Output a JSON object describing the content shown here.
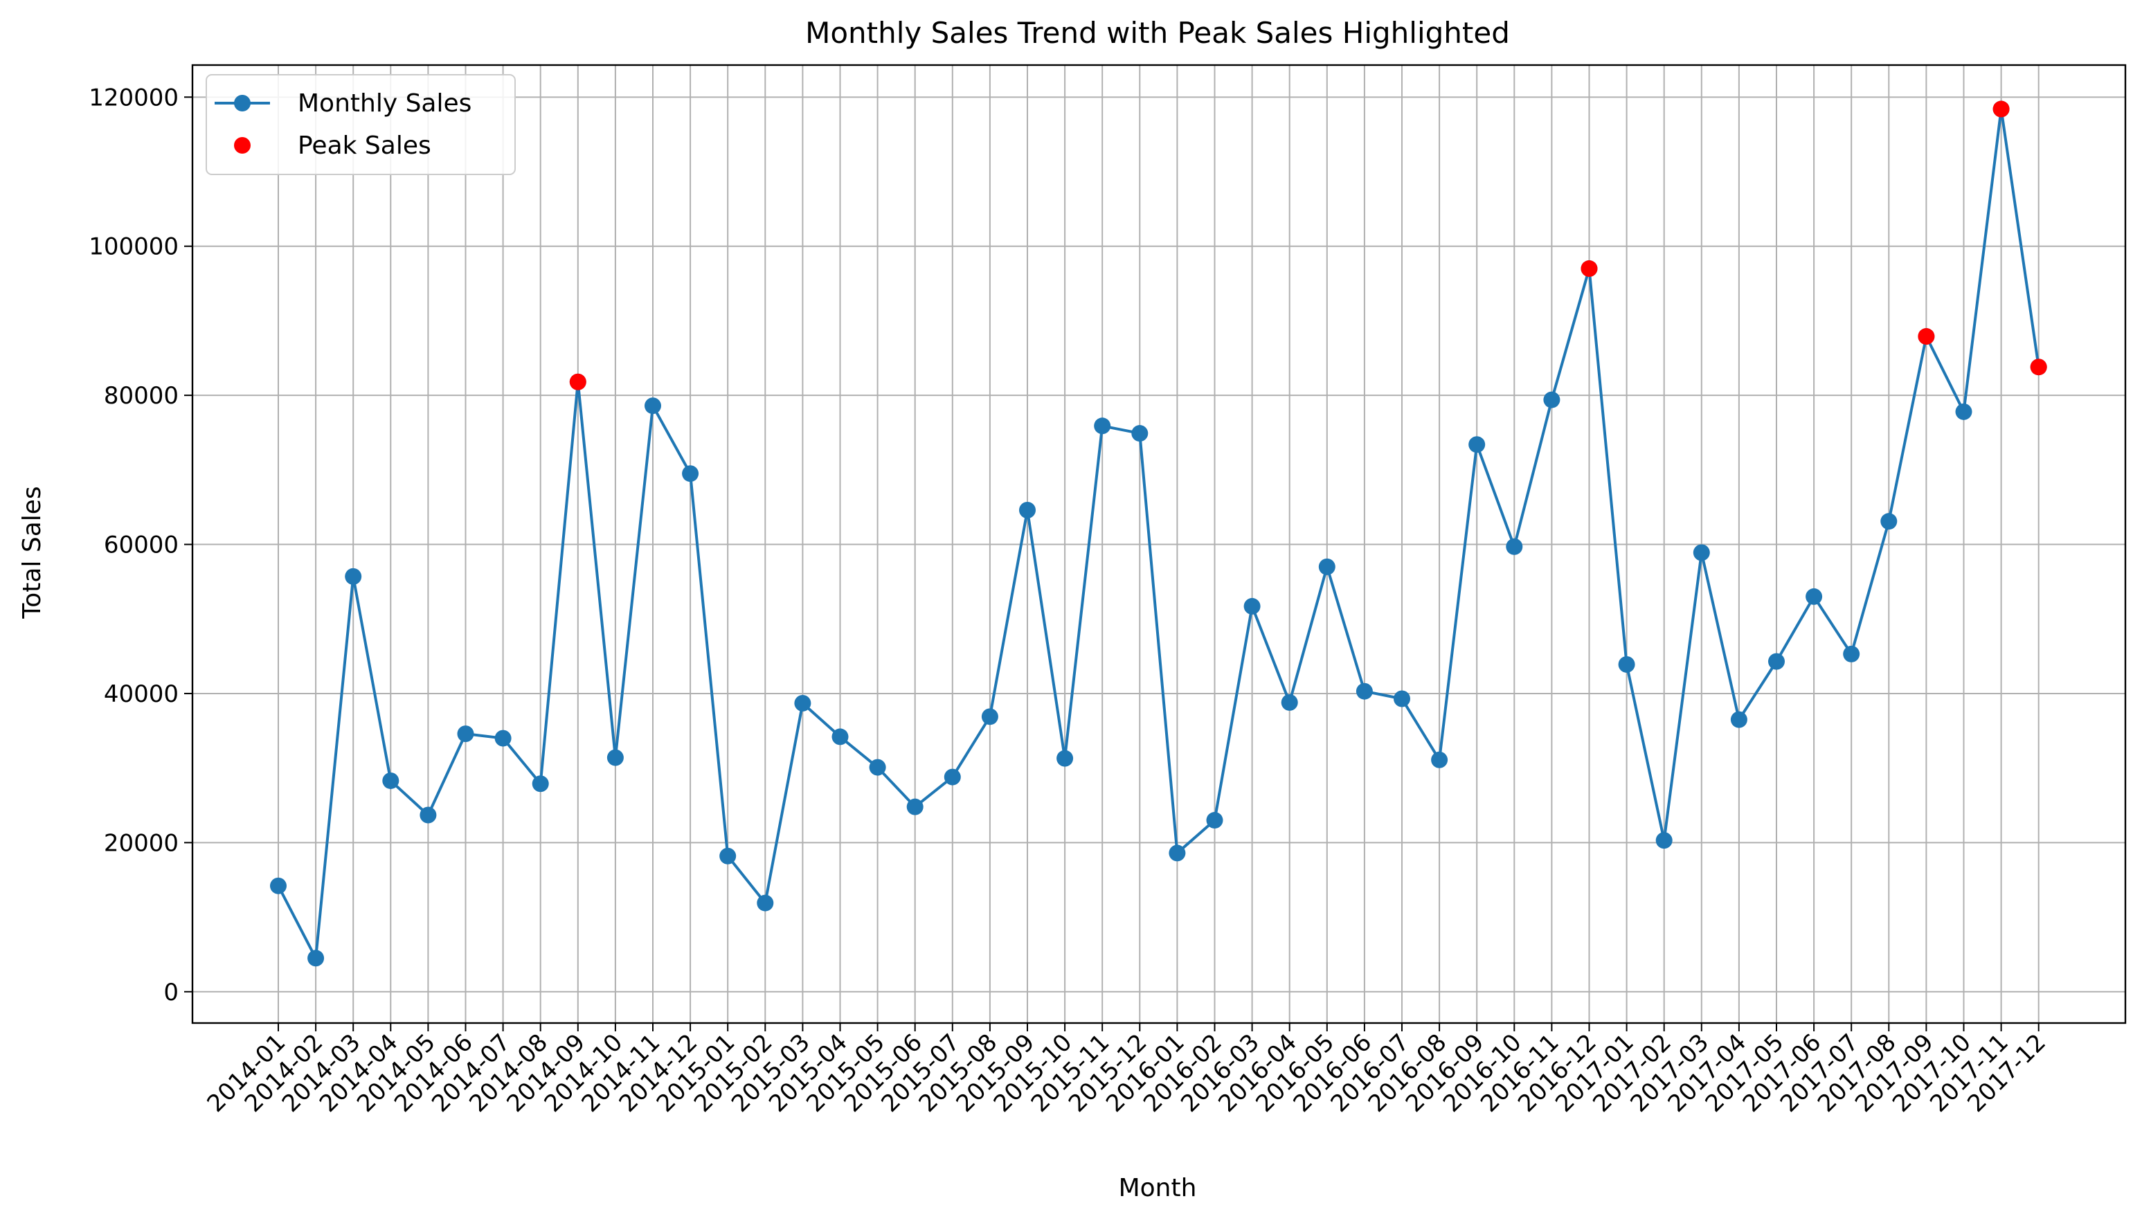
{
  "chart_data": {
    "type": "line",
    "title": "Monthly Sales Trend with Peak Sales Highlighted",
    "xlabel": "Month",
    "ylabel": "Total Sales",
    "ylim": [
      -4200,
      124300
    ],
    "yticks": [
      0,
      20000,
      40000,
      60000,
      80000,
      100000,
      120000
    ],
    "grid": true,
    "legend_position": "top-left",
    "categories": [
      "2014-01",
      "2014-02",
      "2014-03",
      "2014-04",
      "2014-05",
      "2014-06",
      "2014-07",
      "2014-08",
      "2014-09",
      "2014-10",
      "2014-11",
      "2014-12",
      "2015-01",
      "2015-02",
      "2015-03",
      "2015-04",
      "2015-05",
      "2015-06",
      "2015-07",
      "2015-08",
      "2015-09",
      "2015-10",
      "2015-11",
      "2015-12",
      "2016-01",
      "2016-02",
      "2016-03",
      "2016-04",
      "2016-05",
      "2016-06",
      "2016-07",
      "2016-08",
      "2016-09",
      "2016-10",
      "2016-11",
      "2016-12",
      "2017-01",
      "2017-02",
      "2017-03",
      "2017-04",
      "2017-05",
      "2017-06",
      "2017-07",
      "2017-08",
      "2017-09",
      "2017-10",
      "2017-11",
      "2017-12"
    ],
    "series": [
      {
        "name": "Monthly Sales",
        "color": "#1f77b4",
        "style": "line-marker",
        "values": [
          14200,
          4500,
          55700,
          28300,
          23700,
          34600,
          34000,
          27900,
          81800,
          31400,
          78600,
          69500,
          18200,
          11900,
          38700,
          34200,
          30100,
          24800,
          28800,
          36900,
          64600,
          31300,
          75900,
          74900,
          18600,
          23000,
          51700,
          38800,
          57000,
          40300,
          39300,
          31100,
          73400,
          59700,
          79400,
          97000,
          43900,
          20300,
          58900,
          36500,
          44300,
          53000,
          45300,
          63100,
          87900,
          77800,
          118400,
          83800
        ]
      },
      {
        "name": "Peak Sales",
        "color": "#ff0000",
        "style": "scatter",
        "points": [
          {
            "x": "2014-09",
            "y": 81800
          },
          {
            "x": "2016-12",
            "y": 97000
          },
          {
            "x": "2017-09",
            "y": 87900
          },
          {
            "x": "2017-11",
            "y": 118400
          },
          {
            "x": "2017-12",
            "y": 83800
          }
        ]
      }
    ]
  }
}
